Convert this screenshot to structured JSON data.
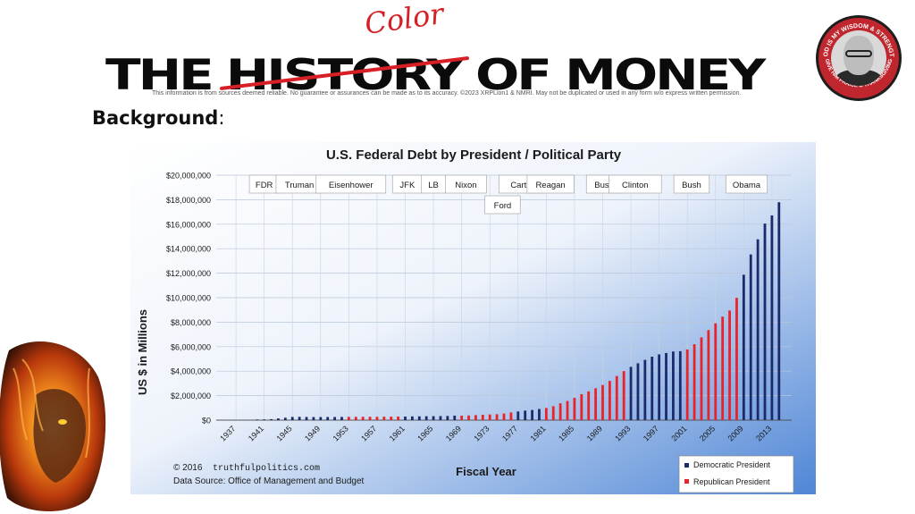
{
  "header": {
    "title_words": [
      "THE",
      "HISTORY",
      "OF MONEY"
    ],
    "overlay_word": "Color",
    "disclaimer": "This information is from sources deemed reliable. No guarantee or assurances can be made as to its accuracy. ©2023 XRPLion1 & NMRI. May not be duplicated or used in any form w/o express written permission.",
    "badge_top_text": "GOD IS MY WISDOM & STRENGTH",
    "badge_bottom_text": "GIVE HIM PRAISE & THANKSGIVING"
  },
  "section": {
    "heading": "Background",
    "colon": ":"
  },
  "colors": {
    "democratic": "#1b2a6b",
    "republican": "#e8232a",
    "accent": "#d62025"
  },
  "chart_data": {
    "type": "bar",
    "title": "U.S. Federal Debt by President / Political Party",
    "xlabel": "Fiscal Year",
    "ylabel": "US $ in Millions",
    "ylim": [
      0,
      20000000
    ],
    "yticks": [
      0,
      2000000,
      4000000,
      6000000,
      8000000,
      10000000,
      12000000,
      14000000,
      16000000,
      18000000,
      20000000
    ],
    "ytick_labels": [
      "$0",
      "$2,000,000",
      "$4,000,000",
      "$6,000,000",
      "$8,000,000",
      "$10,000,000",
      "$12,000,000",
      "$14,000,000",
      "$16,000,000",
      "$18,000,000",
      "$20,000,000"
    ],
    "xtick_labels": [
      "1937",
      "1941",
      "1945",
      "1949",
      "1953",
      "1957",
      "1961",
      "1965",
      "1969",
      "1973",
      "1977",
      "1981",
      "1985",
      "1989",
      "1993",
      "1997",
      "2001",
      "2005",
      "2009",
      "2013"
    ],
    "xtick_years": [
      1937,
      1941,
      1945,
      1949,
      1953,
      1957,
      1961,
      1965,
      1969,
      1973,
      1977,
      1981,
      1985,
      1989,
      1993,
      1997,
      2001,
      2005,
      2009,
      2013
    ],
    "years": [
      1940,
      1941,
      1942,
      1943,
      1944,
      1945,
      1946,
      1947,
      1948,
      1949,
      1950,
      1951,
      1952,
      1953,
      1954,
      1955,
      1956,
      1957,
      1958,
      1959,
      1960,
      1961,
      1962,
      1963,
      1964,
      1965,
      1966,
      1967,
      1968,
      1969,
      1970,
      1971,
      1972,
      1973,
      1974,
      1975,
      1976,
      1977,
      1978,
      1979,
      1980,
      1981,
      1982,
      1983,
      1984,
      1985,
      1986,
      1987,
      1988,
      1989,
      1990,
      1991,
      1992,
      1993,
      1994,
      1995,
      1996,
      1997,
      1998,
      1999,
      2000,
      2001,
      2002,
      2003,
      2004,
      2005,
      2006,
      2007,
      2008,
      2009,
      2010,
      2011,
      2012,
      2013,
      2014
    ],
    "values": [
      50000,
      60000,
      80000,
      140000,
      200000,
      260000,
      270000,
      258000,
      252000,
      252000,
      257000,
      255000,
      259000,
      266000,
      271000,
      274000,
      273000,
      272000,
      280000,
      287000,
      291000,
      293000,
      303000,
      310000,
      316000,
      322000,
      328000,
      340000,
      369000,
      366000,
      381000,
      408000,
      436000,
      466000,
      484000,
      542000,
      629000,
      706000,
      777000,
      829000,
      909000,
      995000,
      1137000,
      1372000,
      1565000,
      1817000,
      2121000,
      2346000,
      2601000,
      2868000,
      3206000,
      3598000,
      4002000,
      4351000,
      4643000,
      4921000,
      5181000,
      5369000,
      5478000,
      5606000,
      5629000,
      5770000,
      6198000,
      6760000,
      7355000,
      7905000,
      8451000,
      8951000,
      9986000,
      11876000,
      13529000,
      14764000,
      16051000,
      16719000,
      17794000
    ],
    "parties": [
      "D",
      "D",
      "D",
      "D",
      "D",
      "D",
      "D",
      "D",
      "D",
      "D",
      "D",
      "D",
      "D",
      "R",
      "R",
      "R",
      "R",
      "R",
      "R",
      "R",
      "R",
      "D",
      "D",
      "D",
      "D",
      "D",
      "D",
      "D",
      "D",
      "R",
      "R",
      "R",
      "R",
      "R",
      "R",
      "R",
      "R",
      "D",
      "D",
      "D",
      "D",
      "R",
      "R",
      "R",
      "R",
      "R",
      "R",
      "R",
      "R",
      "R",
      "R",
      "R",
      "R",
      "D",
      "D",
      "D",
      "D",
      "D",
      "D",
      "D",
      "D",
      "R",
      "R",
      "R",
      "R",
      "R",
      "R",
      "R",
      "R",
      "D",
      "D",
      "D",
      "D",
      "D",
      "D"
    ],
    "presidents": [
      "FDR",
      "Truman",
      "Eisenhower",
      "JFK",
      "LB",
      "Nixon",
      "Ford",
      "Carter",
      "Reagan",
      "Bush",
      "Clinton",
      "Bush",
      "Obama"
    ],
    "president_label_years": [
      1941.0,
      1946.0,
      1953.3,
      1961.3,
      1965.0,
      1969.6,
      1974.8,
      1977.6,
      1981.6,
      1989.2,
      1993.6,
      2001.6,
      2009.4
    ],
    "legend": [
      {
        "label": "Democratic President",
        "party": "D"
      },
      {
        "label": "Republican President",
        "party": "R"
      }
    ],
    "legend_position": "bottom-right",
    "footer_copyright": "© 2016",
    "footer_site": "truthfulpolitics.com",
    "footer_source": "Data Source:  Office of Management and Budget",
    "grid": true
  }
}
